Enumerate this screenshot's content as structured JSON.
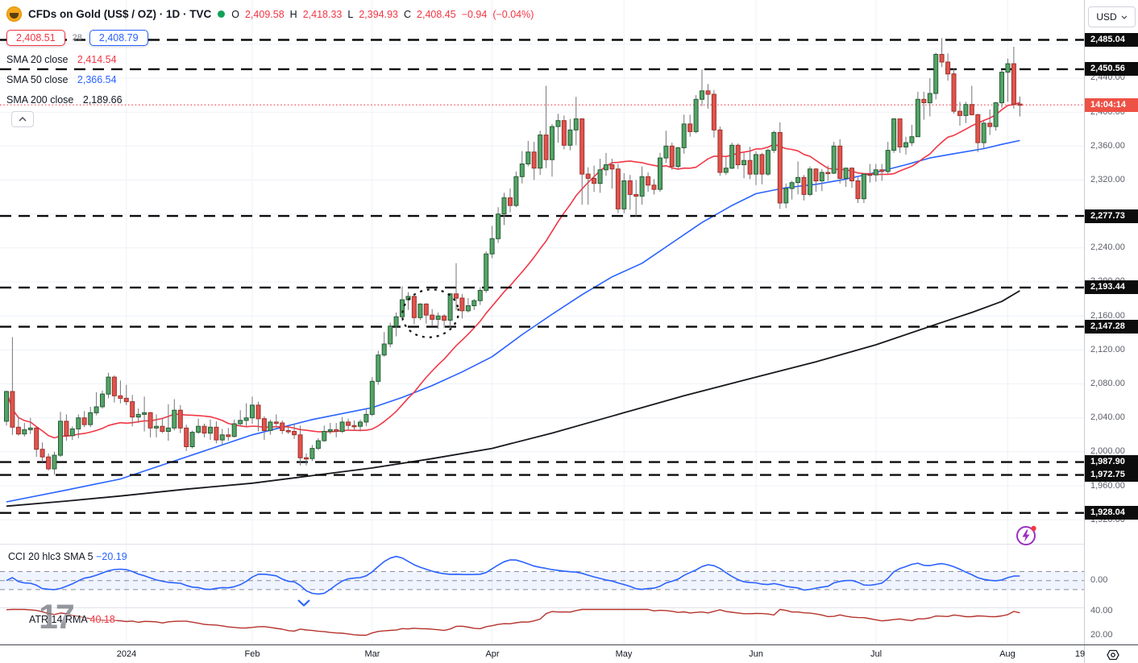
{
  "header": {
    "symbol_title": "CFDs on Gold (US$ / OZ) · 1D · TVC",
    "market_status": "open",
    "ohlc": {
      "o_label": "O",
      "o": "2,409.58",
      "h_label": "H",
      "h": "2,418.33",
      "l_label": "L",
      "l": "2,394.93",
      "c_label": "C",
      "c": "2,408.45",
      "change": "−0.94",
      "change_pct": "(−0.04%)"
    }
  },
  "trade_widget": {
    "sell": "2,408.51",
    "spread": "28",
    "buy": "2,408.79"
  },
  "indicators_legend": [
    {
      "label": "SMA 20 close",
      "value": "2,414.54",
      "color": "#f23645"
    },
    {
      "label": "SMA 50 close",
      "value": "2,366.54",
      "color": "#2962ff"
    },
    {
      "label": "SMA 200 close",
      "value": "2,189.66",
      "color": "#131722"
    }
  ],
  "lower_panes": [
    {
      "title": "CCI 20 hlc3 SMA 5",
      "value": "−20.19",
      "color": "#2962ff"
    },
    {
      "title": "ATR 14 RMA",
      "value": "40.18",
      "color": "#f23645"
    }
  ],
  "price_axis_ui": {
    "currency": "USD",
    "countdown": "14:04:14",
    "cci_zero_tick": "0.00",
    "atr_tick_labels": [
      "40.00",
      "20.00"
    ]
  },
  "watermark_text": "17",
  "chart_data": {
    "type": "candlestick",
    "symbol": "CFDs on Gold (US$ / OZ)",
    "interval": "1D",
    "exchange": "TVC",
    "grid": true,
    "price_ticks": {
      "min": 1920,
      "max": 2440,
      "step": 40
    },
    "levels": [
      2485.04,
      2450.56,
      2277.73,
      2193.44,
      2147.28,
      1987.9,
      1972.75,
      1928.04
    ],
    "current_price": 2408.45,
    "up_color": "#55a368",
    "up_border": "#265c35",
    "down_color": "#e0544e",
    "down_border": "#9c322c",
    "wick_color": "#75757a",
    "months": [
      {
        "label": "2024",
        "index": 20
      },
      {
        "label": "Feb",
        "index": 41
      },
      {
        "label": "Mar",
        "index": 61
      },
      {
        "label": "Apr",
        "index": 81
      },
      {
        "label": "May",
        "index": 103
      },
      {
        "label": "Jun",
        "index": 125
      },
      {
        "label": "Jul",
        "index": 145
      },
      {
        "label": "Aug",
        "index": 167
      },
      {
        "label": "19",
        "index": 179,
        "no_grid": true
      }
    ],
    "candles": [
      [
        2036,
        2072,
        2031,
        2071
      ],
      [
        2071,
        2135,
        2020,
        2029
      ],
      [
        2029,
        2041,
        2019,
        2021
      ],
      [
        2021,
        2034,
        2018,
        2026
      ],
      [
        2026,
        2040,
        2021,
        2028
      ],
      [
        2028,
        2029,
        1994,
        2003
      ],
      [
        2003,
        2011,
        1988,
        1994
      ],
      [
        1994,
        1998,
        1978,
        1980
      ],
      [
        1980,
        2000,
        1973,
        1996
      ],
      [
        1996,
        2047,
        1994,
        2036
      ],
      [
        2036,
        2044,
        2013,
        2019
      ],
      [
        2019,
        2030,
        2014,
        2027
      ],
      [
        2027,
        2044,
        2016,
        2040
      ],
      [
        2040,
        2048,
        2029,
        2032
      ],
      [
        2032,
        2053,
        2029,
        2046
      ],
      [
        2046,
        2070,
        2043,
        2053
      ],
      [
        2053,
        2072,
        2051,
        2068
      ],
      [
        2068,
        2093,
        2063,
        2088
      ],
      [
        2088,
        2090,
        2058,
        2066
      ],
      [
        2066,
        2084,
        2057,
        2063
      ],
      [
        2063,
        2079,
        2055,
        2059
      ],
      [
        2059,
        2067,
        2030,
        2041
      ],
      [
        2041,
        2051,
        2034,
        2044
      ],
      [
        2044,
        2065,
        2024,
        2046
      ],
      [
        2046,
        2047,
        2017,
        2028
      ],
      [
        2028,
        2044,
        2017,
        2030
      ],
      [
        2030,
        2040,
        2022,
        2024
      ],
      [
        2024,
        2056,
        2013,
        2028
      ],
      [
        2028,
        2062,
        2025,
        2049
      ],
      [
        2049,
        2055,
        2022,
        2028
      ],
      [
        2028,
        2032,
        2001,
        2006
      ],
      [
        2006,
        2025,
        2004,
        2023
      ],
      [
        2023,
        2039,
        2021,
        2030
      ],
      [
        2030,
        2033,
        2017,
        2022
      ],
      [
        2022,
        2038,
        2014,
        2029
      ],
      [
        2029,
        2036,
        2010,
        2014
      ],
      [
        2014,
        2027,
        2008,
        2020
      ],
      [
        2020,
        2028,
        2013,
        2018
      ],
      [
        2018,
        2038,
        2017,
        2033
      ],
      [
        2033,
        2049,
        2030,
        2037
      ],
      [
        2037,
        2057,
        2030,
        2040
      ],
      [
        2040,
        2065,
        2033,
        2055
      ],
      [
        2055,
        2059,
        2024,
        2039
      ],
      [
        2039,
        2042,
        2014,
        2025
      ],
      [
        2025,
        2038,
        2020,
        2035
      ],
      [
        2035,
        2044,
        2029,
        2034
      ],
      [
        2034,
        2037,
        2021,
        2025
      ],
      [
        2025,
        2029,
        2021,
        2024
      ],
      [
        2024,
        2033,
        2015,
        2020
      ],
      [
        2020,
        2031,
        1984,
        1993
      ],
      [
        1993,
        1998,
        1984,
        1992
      ],
      [
        1992,
        2008,
        1989,
        2004
      ],
      [
        2004,
        2016,
        2002,
        2013
      ],
      [
        2013,
        2031,
        2012,
        2024
      ],
      [
        2024,
        2034,
        2021,
        2026
      ],
      [
        2026,
        2034,
        2017,
        2024
      ],
      [
        2024,
        2041,
        2022,
        2035
      ],
      [
        2035,
        2039,
        2026,
        2031
      ],
      [
        2031,
        2037,
        2025,
        2030
      ],
      [
        2030,
        2038,
        2024,
        2035
      ],
      [
        2035,
        2050,
        2030,
        2044
      ],
      [
        2044,
        2088,
        2042,
        2083
      ],
      [
        2083,
        2119,
        2079,
        2114
      ],
      [
        2114,
        2141,
        2112,
        2127
      ],
      [
        2127,
        2152,
        2123,
        2148
      ],
      [
        2148,
        2164,
        2136,
        2159
      ],
      [
        2159,
        2195,
        2154,
        2179
      ],
      [
        2179,
        2188,
        2167,
        2183
      ],
      [
        2183,
        2184,
        2150,
        2158
      ],
      [
        2158,
        2175,
        2155,
        2174
      ],
      [
        2174,
        2175,
        2151,
        2161
      ],
      [
        2161,
        2168,
        2148,
        2156
      ],
      [
        2156,
        2164,
        2145,
        2160
      ],
      [
        2160,
        2162,
        2146,
        2155
      ],
      [
        2155,
        2187,
        2146,
        2186
      ],
      [
        2186,
        2222,
        2167,
        2181
      ],
      [
        2181,
        2186,
        2157,
        2166
      ],
      [
        2166,
        2181,
        2164,
        2172
      ],
      [
        2172,
        2180,
        2167,
        2178
      ],
      [
        2178,
        2194,
        2173,
        2190
      ],
      [
        2190,
        2236,
        2187,
        2233
      ],
      [
        2233,
        2266,
        2228,
        2251
      ],
      [
        2251,
        2288,
        2246,
        2280
      ],
      [
        2280,
        2305,
        2267,
        2299
      ],
      [
        2299,
        2310,
        2282,
        2290
      ],
      [
        2290,
        2330,
        2288,
        2324
      ],
      [
        2324,
        2354,
        2316,
        2339
      ],
      [
        2339,
        2366,
        2336,
        2353
      ],
      [
        2353,
        2365,
        2320,
        2334
      ],
      [
        2334,
        2378,
        2326,
        2373
      ],
      [
        2373,
        2431,
        2334,
        2344
      ],
      [
        2344,
        2386,
        2324,
        2383
      ],
      [
        2383,
        2398,
        2364,
        2390
      ],
      [
        2390,
        2396,
        2356,
        2361
      ],
      [
        2361,
        2392,
        2355,
        2379
      ],
      [
        2379,
        2418,
        2361,
        2392
      ],
      [
        2392,
        2393,
        2291,
        2327
      ],
      [
        2327,
        2335,
        2291,
        2322
      ],
      [
        2322,
        2337,
        2306,
        2316
      ],
      [
        2316,
        2345,
        2305,
        2332
      ],
      [
        2332,
        2352,
        2325,
        2338
      ],
      [
        2338,
        2345,
        2310,
        2333
      ],
      [
        2333,
        2339,
        2281,
        2286
      ],
      [
        2286,
        2328,
        2281,
        2319
      ],
      [
        2319,
        2326,
        2285,
        2303
      ],
      [
        2303,
        2320,
        2277,
        2301
      ],
      [
        2301,
        2336,
        2291,
        2324
      ],
      [
        2324,
        2329,
        2306,
        2314
      ],
      [
        2314,
        2321,
        2303,
        2309
      ],
      [
        2309,
        2352,
        2306,
        2346
      ],
      [
        2346,
        2378,
        2340,
        2360
      ],
      [
        2360,
        2364,
        2332,
        2336
      ],
      [
        2336,
        2359,
        2333,
        2358
      ],
      [
        2358,
        2397,
        2351,
        2386
      ],
      [
        2386,
        2397,
        2371,
        2377
      ],
      [
        2377,
        2420,
        2375,
        2415
      ],
      [
        2415,
        2450,
        2407,
        2425
      ],
      [
        2425,
        2433,
        2404,
        2421
      ],
      [
        2421,
        2426,
        2370,
        2379
      ],
      [
        2379,
        2383,
        2325,
        2329
      ],
      [
        2329,
        2347,
        2326,
        2334
      ],
      [
        2334,
        2364,
        2333,
        2361
      ],
      [
        2361,
        2363,
        2333,
        2338
      ],
      [
        2338,
        2352,
        2322,
        2343
      ],
      [
        2343,
        2359,
        2321,
        2327
      ],
      [
        2327,
        2354,
        2314,
        2350
      ],
      [
        2350,
        2352,
        2315,
        2327
      ],
      [
        2327,
        2357,
        2325,
        2355
      ],
      [
        2355,
        2378,
        2352,
        2376
      ],
      [
        2376,
        2388,
        2286,
        2293
      ],
      [
        2293,
        2316,
        2287,
        2310
      ],
      [
        2310,
        2319,
        2297,
        2317
      ],
      [
        2317,
        2342,
        2303,
        2323
      ],
      [
        2323,
        2326,
        2296,
        2303
      ],
      [
        2303,
        2336,
        2301,
        2333
      ],
      [
        2333,
        2334,
        2306,
        2319
      ],
      [
        2319,
        2333,
        2307,
        2329
      ],
      [
        2329,
        2337,
        2319,
        2328
      ],
      [
        2328,
        2365,
        2327,
        2360
      ],
      [
        2360,
        2368,
        2316,
        2322
      ],
      [
        2322,
        2334,
        2312,
        2334
      ],
      [
        2334,
        2335,
        2311,
        2319
      ],
      [
        2319,
        2323,
        2293,
        2298
      ],
      [
        2298,
        2327,
        2293,
        2327
      ],
      [
        2327,
        2339,
        2317,
        2326
      ],
      [
        2326,
        2339,
        2318,
        2332
      ],
      [
        2332,
        2339,
        2319,
        2330
      ],
      [
        2330,
        2365,
        2327,
        2355
      ],
      [
        2355,
        2393,
        2352,
        2392
      ],
      [
        2392,
        2392,
        2352,
        2359
      ],
      [
        2359,
        2371,
        2350,
        2364
      ],
      [
        2364,
        2385,
        2360,
        2371
      ],
      [
        2371,
        2424,
        2371,
        2415
      ],
      [
        2415,
        2424,
        2391,
        2411
      ],
      [
        2411,
        2440,
        2395,
        2422
      ],
      [
        2422,
        2470,
        2415,
        2468
      ],
      [
        2468,
        2487,
        2453,
        2459
      ],
      [
        2459,
        2469,
        2437,
        2445
      ],
      [
        2445,
        2451,
        2398,
        2401
      ],
      [
        2401,
        2412,
        2384,
        2396
      ],
      [
        2396,
        2412,
        2387,
        2409
      ],
      [
        2409,
        2431,
        2396,
        2397
      ],
      [
        2397,
        2398,
        2353,
        2364
      ],
      [
        2364,
        2390,
        2357,
        2387
      ],
      [
        2387,
        2403,
        2373,
        2383
      ],
      [
        2383,
        2412,
        2378,
        2411
      ],
      [
        2411,
        2450,
        2405,
        2447
      ],
      [
        2447,
        2463,
        2412,
        2457
      ],
      [
        2457,
        2477,
        2404,
        2409.4
      ],
      [
        2409.58,
        2418.33,
        2394.93,
        2408.45
      ]
    ],
    "sma20": {
      "period": 20,
      "source": "close",
      "last": 2414.54,
      "color": "#f23645"
    },
    "sma50": {
      "period": 50,
      "source": "close",
      "last": 2366.54,
      "color": "#2962ff",
      "points": [
        [
          0,
          1941
        ],
        [
          10,
          1955
        ],
        [
          19,
          1968
        ],
        [
          30,
          1994
        ],
        [
          41,
          2020
        ],
        [
          51,
          2038
        ],
        [
          61,
          2052
        ],
        [
          66,
          2064
        ],
        [
          71,
          2078
        ],
        [
          76,
          2094
        ],
        [
          81,
          2112
        ],
        [
          86,
          2138
        ],
        [
          91,
          2162
        ],
        [
          96,
          2185
        ],
        [
          101,
          2206
        ],
        [
          106,
          2222
        ],
        [
          111,
          2246
        ],
        [
          116,
          2270
        ],
        [
          121,
          2290
        ],
        [
          125,
          2304
        ],
        [
          130,
          2311
        ],
        [
          135,
          2315
        ],
        [
          140,
          2321
        ],
        [
          145,
          2329
        ],
        [
          150,
          2338
        ],
        [
          154,
          2346
        ],
        [
          158,
          2351
        ],
        [
          163,
          2357
        ],
        [
          166,
          2362
        ],
        [
          169,
          2366.54
        ]
      ]
    },
    "sma200": {
      "period": 200,
      "source": "close",
      "last": 2189.66,
      "color": "#16181d",
      "points": [
        [
          0,
          1936
        ],
        [
          10,
          1942
        ],
        [
          19,
          1948
        ],
        [
          30,
          1956
        ],
        [
          41,
          1963
        ],
        [
          51,
          1972
        ],
        [
          61,
          1981
        ],
        [
          71,
          1992
        ],
        [
          81,
          2004
        ],
        [
          91,
          2022
        ],
        [
          103,
          2046
        ],
        [
          113,
          2066
        ],
        [
          125,
          2088
        ],
        [
          135,
          2106
        ],
        [
          145,
          2126
        ],
        [
          155,
          2150
        ],
        [
          161,
          2164
        ],
        [
          166,
          2177
        ],
        [
          169,
          2189.66
        ]
      ]
    },
    "cci": {
      "period": 20,
      "source": "hlc3",
      "smoothing": 5,
      "last": -20.19,
      "band": [
        -100,
        100
      ],
      "zero": 0,
      "color": "#2962ff"
    },
    "atr": {
      "period": 14,
      "method": "RMA",
      "last": 40.18,
      "ticks": [
        40,
        20
      ],
      "color": "#b5332c"
    },
    "annotation_ellipse": {
      "center_index": 70.7,
      "center_price": 2163,
      "rx_index": 4.7,
      "ry_price": 28,
      "rotation_deg": -10
    }
  }
}
